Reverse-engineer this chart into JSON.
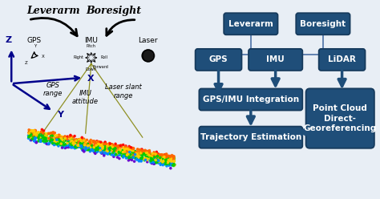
{
  "background_color": "#e8eef5",
  "left_bg": "#dde5ef",
  "right_bg": "#dde5ef",
  "box_color": "#1f4e79",
  "box_edge": "#163a5c",
  "box_text_color": "#ffffff",
  "arrow_color": "#1f4e79",
  "line_color": "#4a6fa5",
  "leverarm_text": "Leverarm",
  "boresight_text": "Boresight",
  "gps_text": "GPS",
  "imu_text": "IMU",
  "lidar_text": "LiDAR",
  "integration_text": "GPS/IMU Integration",
  "trajectory_text": "Trajectory Estimation",
  "pointcloud_text": "Point Cloud\nDirect-\nGeoreferencing",
  "gps_range_text": "GPS\nrange",
  "imu_attitude_text": "IMU\nattitude",
  "laser_slant_text": "Laser slant\nrange",
  "axis_color": "#00008b",
  "scan_line_color": "#808000",
  "z_label": "Z",
  "y_label": "Y",
  "x_label": "X"
}
